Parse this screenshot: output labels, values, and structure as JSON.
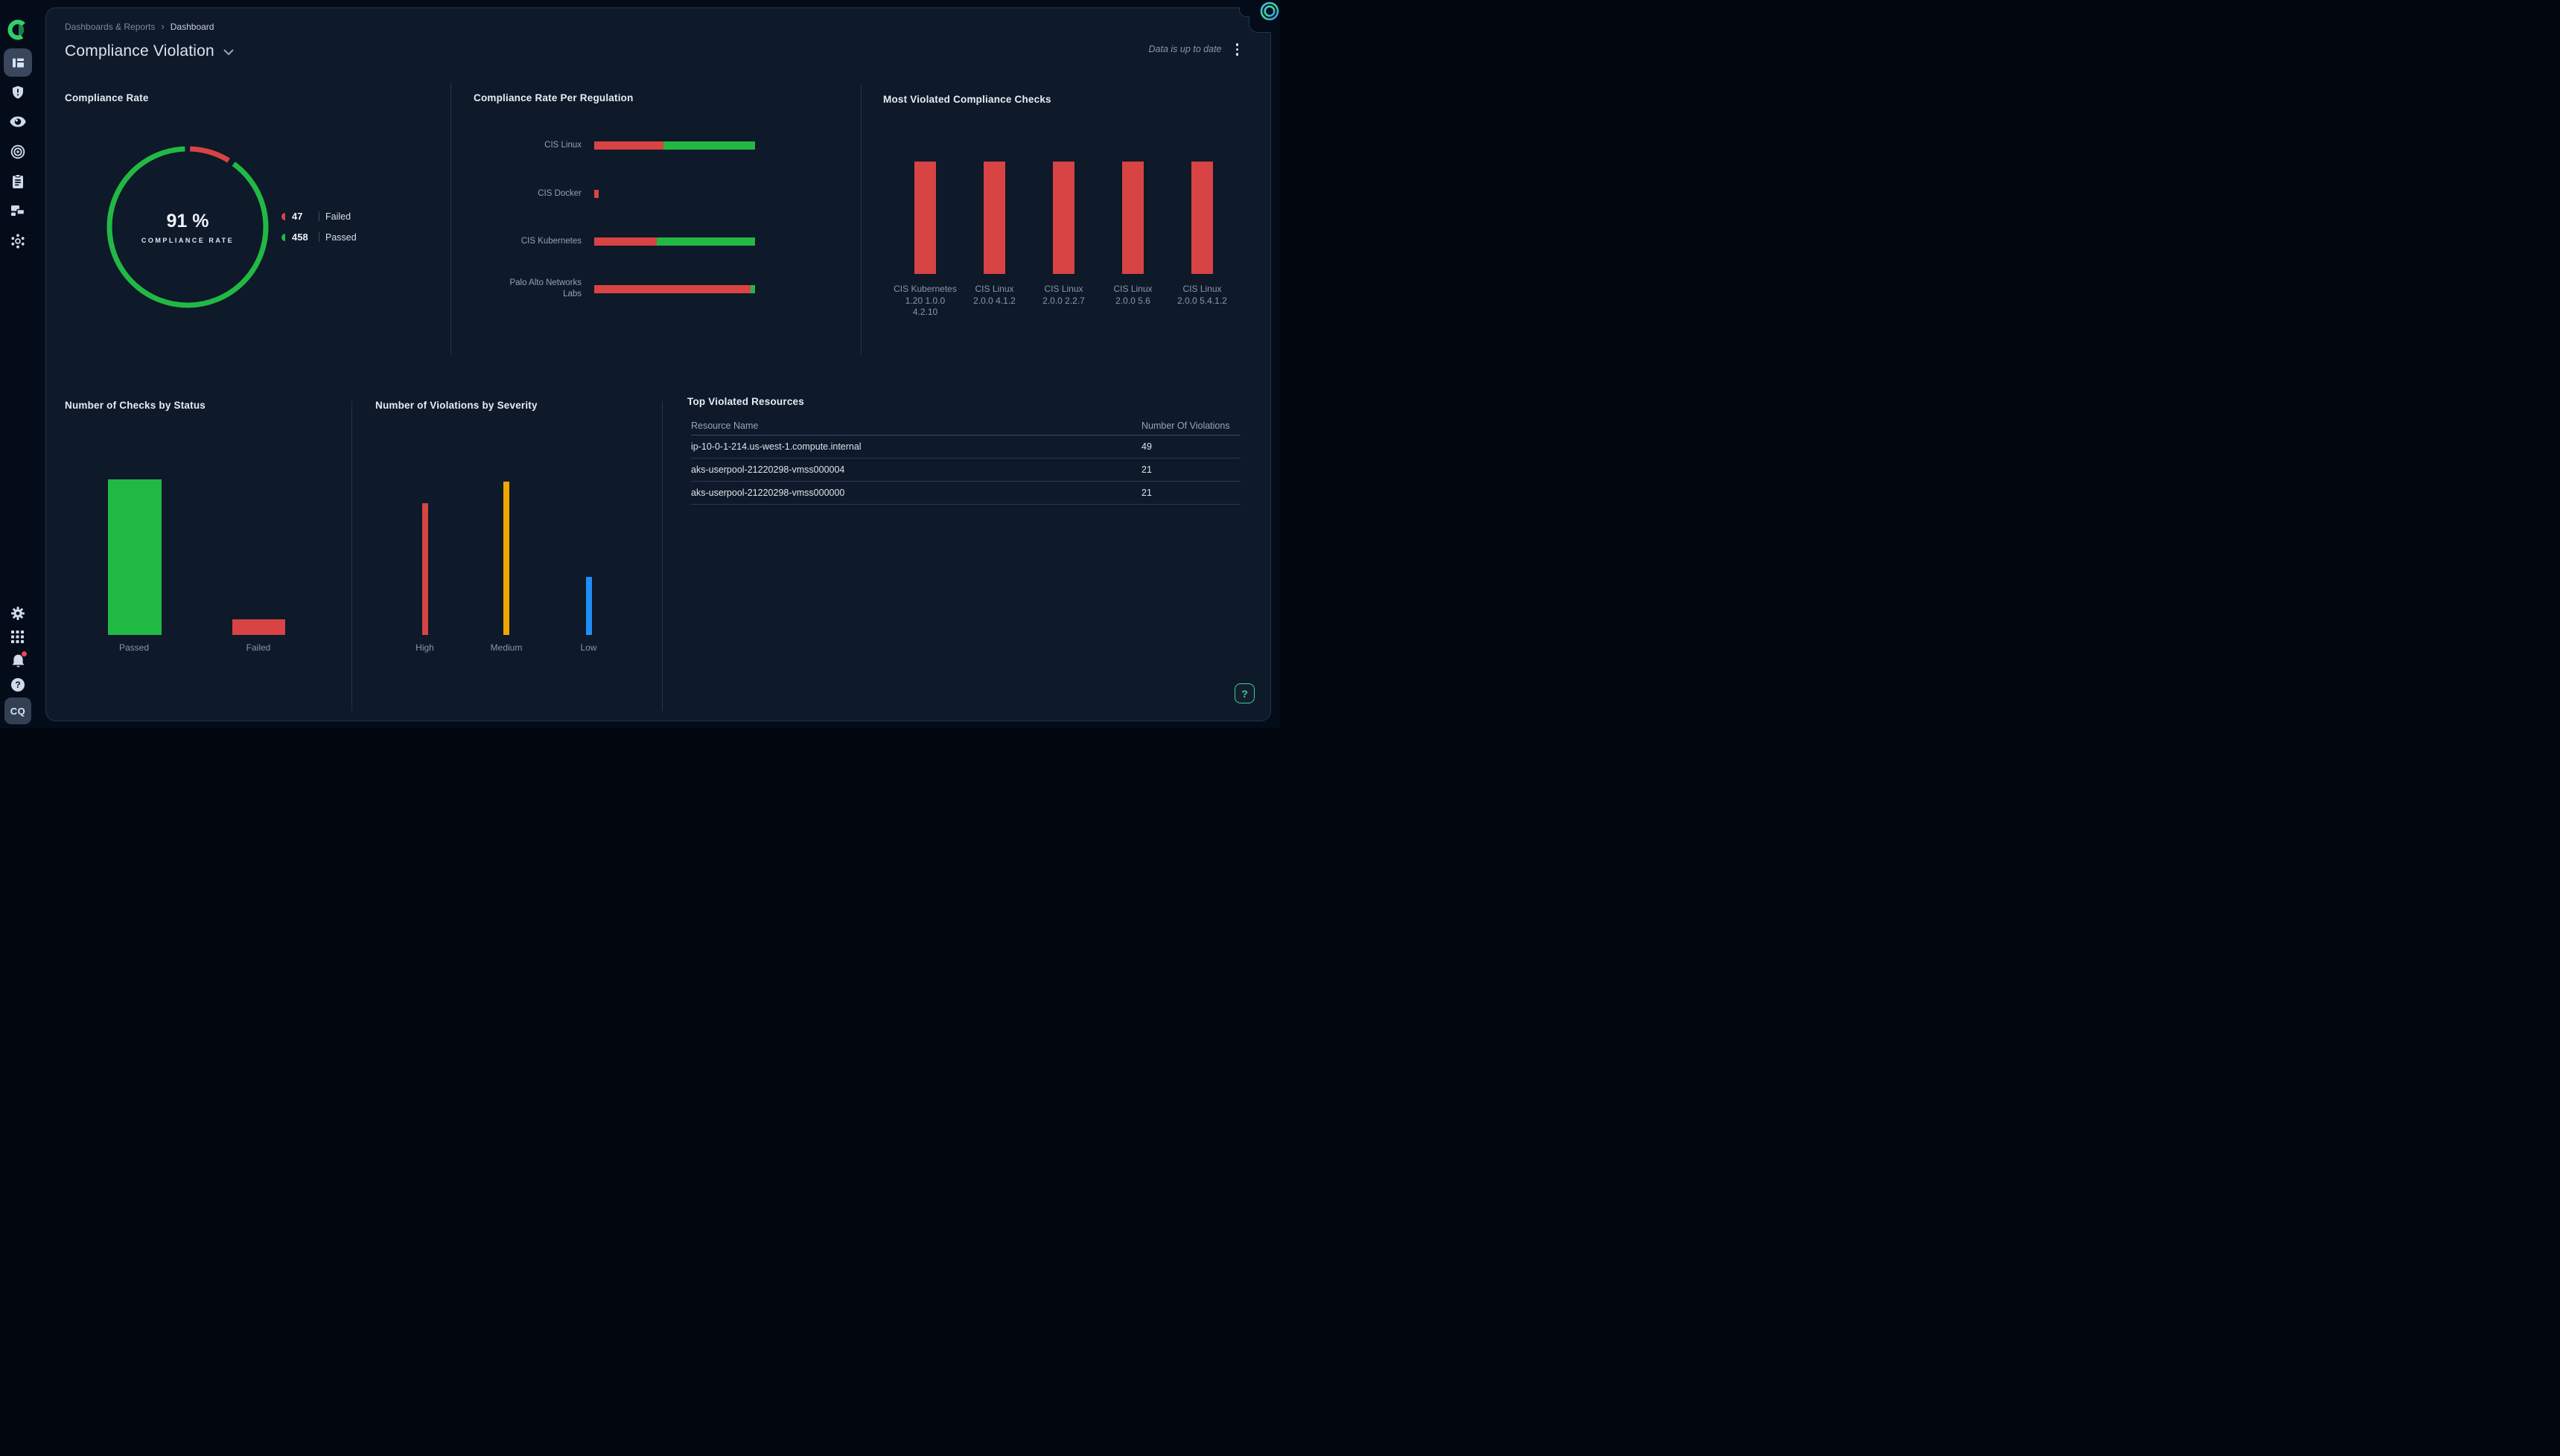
{
  "breadcrumb": {
    "items": [
      "Dashboards & Reports",
      "Dashboard"
    ],
    "separator": "›"
  },
  "header": {
    "title": "Compliance Violation",
    "status_text": "Data is up to date"
  },
  "sidebar": {
    "avatar_initials": "CQ"
  },
  "help_fab_label": "?",
  "colors": {
    "failed_red": "#d84343",
    "passed_green": "#21b944",
    "medium_orange": "#f0a500",
    "low_blue": "#1f8ef5",
    "accent_teal": "#3fd094",
    "panel_bg": "#0e1929",
    "page_bg": "#040c19"
  },
  "chart_data": [
    {
      "id": "compliance_rate_donut",
      "type": "pie",
      "title": "Compliance Rate",
      "center_label": "91 %",
      "center_sub": "COMPLIANCE RATE",
      "values": [
        {
          "label": "Failed",
          "value": 47,
          "color": "#d84343"
        },
        {
          "label": "Passed",
          "value": 458,
          "color": "#21b944"
        }
      ],
      "legend_position": "right"
    },
    {
      "id": "per_regulation",
      "type": "bar",
      "orientation": "horizontal-stacked",
      "title": "Compliance Rate Per Regulation",
      "categories": [
        "CIS Linux",
        "CIS Docker",
        "CIS Kubernetes",
        "Palo Alto Networks Labs"
      ],
      "category_lines": [
        [
          "CIS Linux"
        ],
        [
          "CIS Docker"
        ],
        [
          "CIS Kubernetes"
        ],
        [
          "Palo Alto Networks",
          "Labs"
        ]
      ],
      "series": [
        {
          "name": "Failed",
          "color": "#d84343",
          "pct": [
            43,
            2.8,
            39,
            97
          ]
        },
        {
          "name": "Passed",
          "color": "#21b944",
          "pct": [
            57,
            0,
            61,
            3
          ]
        }
      ],
      "note": "segment widths estimated from pixels; no value axis shown"
    },
    {
      "id": "most_violated",
      "type": "bar",
      "title": "Most Violated Compliance Checks",
      "categories": [
        "CIS Kubernetes 1.20 1.0.0 4.2.10",
        "CIS Linux 2.0.0 4.1.2",
        "CIS Linux 2.0.0 2.2.7",
        "CIS Linux 2.0.0 5.6",
        "CIS Linux 2.0.0 5.4.1.2"
      ],
      "category_lines": [
        [
          "CIS Kubernetes",
          "1.20 1.0.0",
          "4.2.10"
        ],
        [
          "CIS Linux",
          "2.0.0 4.1.2"
        ],
        [
          "CIS Linux",
          "2.0.0 2.2.7"
        ],
        [
          "CIS Linux",
          "2.0.0 5.6"
        ],
        [
          "CIS Linux",
          "2.0.0 5.4.1.2"
        ]
      ],
      "values": [
        1,
        1,
        1,
        1,
        1
      ],
      "bar_color": "#d84343",
      "note": "all five bars equal height; no value axis shown"
    },
    {
      "id": "checks_by_status",
      "type": "bar",
      "title": "Number of Checks by Status",
      "categories": [
        "Passed",
        "Failed"
      ],
      "values": [
        458,
        47
      ],
      "bar_colors": [
        "#21b944",
        "#d84343"
      ],
      "note": "values taken from donut legend (458 passed / 47 failed)"
    },
    {
      "id": "violations_by_severity",
      "type": "bar",
      "title": "Number of Violations by Severity",
      "categories": [
        "High",
        "Medium",
        "Low"
      ],
      "values": [
        43,
        50,
        19
      ],
      "bar_colors": [
        "#d84343",
        "#f0a500",
        "#1f8ef5"
      ],
      "estimated": true,
      "note": "no value axis shown; values estimated from relative bar heights"
    },
    {
      "id": "top_violated_table",
      "type": "table",
      "title": "Top Violated Resources",
      "columns": [
        "Resource Name",
        "Number Of Violations"
      ],
      "rows": [
        [
          "ip-10-0-1-214.us-west-1.compute.internal",
          "49"
        ],
        [
          "aks-userpool-21220298-vmss000004",
          "21"
        ],
        [
          "aks-userpool-21220298-vmss000000",
          "21"
        ]
      ]
    }
  ]
}
